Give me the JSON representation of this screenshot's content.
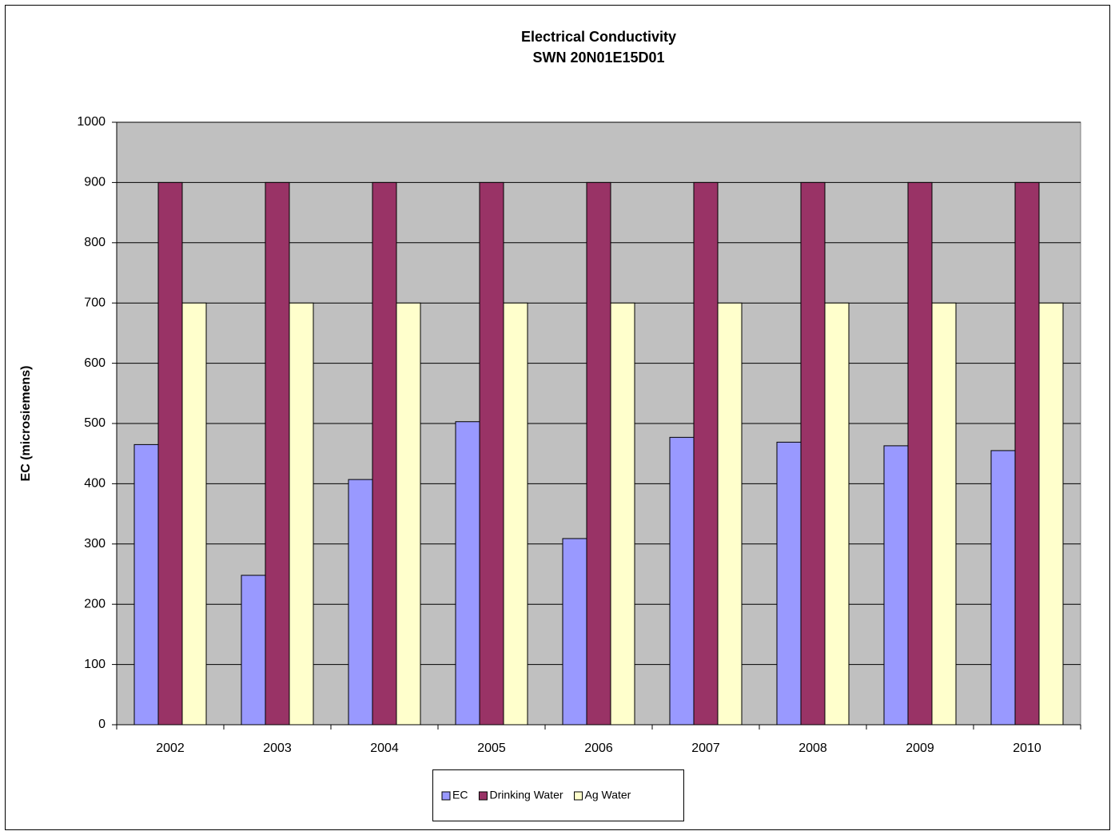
{
  "chart_data": {
    "type": "bar",
    "title": "Electrical Conductivity",
    "subtitle": "SWN 20N01E15D01",
    "y_label": "EC (microsiemens)",
    "categories": [
      "2002",
      "2003",
      "2004",
      "2005",
      "2006",
      "2007",
      "2008",
      "2009",
      "2010"
    ],
    "series": [
      {
        "name": "EC",
        "color": "#9999ff",
        "values": [
          465,
          248,
          407,
          503,
          309,
          477,
          469,
          463,
          455
        ]
      },
      {
        "name": "Drinking Water",
        "color": "#993366",
        "values": [
          900,
          900,
          900,
          900,
          900,
          900,
          900,
          900,
          900
        ]
      },
      {
        "name": "Ag Water",
        "color": "#ffffcc",
        "values": [
          700,
          700,
          700,
          700,
          700,
          700,
          700,
          700,
          700
        ]
      }
    ],
    "ylim": [
      0,
      1000
    ],
    "yticks": [
      0,
      100,
      200,
      300,
      400,
      500,
      600,
      700,
      800,
      900,
      1000
    ],
    "grid": true,
    "plot_background": "#c0c0c0",
    "legend": "bottom"
  }
}
